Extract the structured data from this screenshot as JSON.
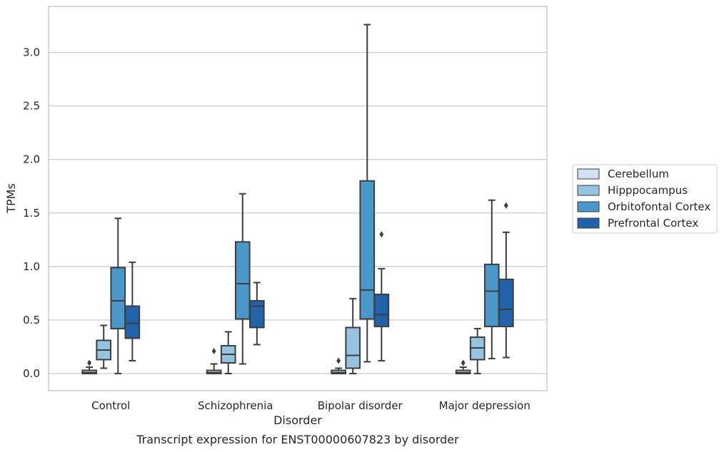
{
  "chart_data": {
    "type": "box",
    "caption": "Transcript expression for ENST00000607823 by disorder",
    "xlabel": "Disorder",
    "ylabel": "TPMs",
    "ylim": [
      -0.16,
      3.43
    ],
    "yticks": [
      "0.0",
      "0.5",
      "1.0",
      "1.5",
      "2.0",
      "2.5",
      "3.0"
    ],
    "ytick_values": [
      0.0,
      0.5,
      1.0,
      1.5,
      2.0,
      2.5,
      3.0
    ],
    "grid": "horizontal",
    "legend_position": "right",
    "categories": [
      "Control",
      "Schizophrenia",
      "Bipolar disorder",
      "Major depression"
    ],
    "series": [
      {
        "name": "Cerebellum",
        "color": "#d0e1f2",
        "boxes": [
          {
            "whislo": 0.0,
            "q1": 0.0,
            "med": 0.01,
            "q3": 0.03,
            "whishi": 0.06,
            "fliers": [
              0.1
            ]
          },
          {
            "whislo": 0.0,
            "q1": 0.0,
            "med": 0.01,
            "q3": 0.03,
            "whishi": 0.09,
            "fliers": [
              0.21
            ]
          },
          {
            "whislo": 0.0,
            "q1": 0.0,
            "med": 0.01,
            "q3": 0.03,
            "whishi": 0.05,
            "fliers": [
              0.12
            ]
          },
          {
            "whislo": 0.0,
            "q1": 0.0,
            "med": 0.01,
            "q3": 0.03,
            "whishi": 0.06,
            "fliers": [
              0.1
            ]
          }
        ]
      },
      {
        "name": "Hipppocampus",
        "color": "#94c4df",
        "boxes": [
          {
            "whislo": 0.05,
            "q1": 0.13,
            "med": 0.22,
            "q3": 0.31,
            "whishi": 0.45,
            "fliers": []
          },
          {
            "whislo": 0.0,
            "q1": 0.1,
            "med": 0.18,
            "q3": 0.26,
            "whishi": 0.39,
            "fliers": []
          },
          {
            "whislo": 0.0,
            "q1": 0.05,
            "med": 0.17,
            "q3": 0.43,
            "whishi": 0.7,
            "fliers": []
          },
          {
            "whislo": 0.0,
            "q1": 0.13,
            "med": 0.24,
            "q3": 0.34,
            "whishi": 0.42,
            "fliers": []
          }
        ]
      },
      {
        "name": "Orbitofontal Cortex",
        "color": "#4a98c9",
        "boxes": [
          {
            "whislo": 0.0,
            "q1": 0.42,
            "med": 0.68,
            "q3": 0.99,
            "whishi": 1.45,
            "fliers": []
          },
          {
            "whislo": 0.09,
            "q1": 0.51,
            "med": 0.84,
            "q3": 1.23,
            "whishi": 1.68,
            "fliers": []
          },
          {
            "whislo": 0.11,
            "q1": 0.51,
            "med": 0.78,
            "q3": 1.8,
            "whishi": 3.26,
            "fliers": []
          },
          {
            "whislo": 0.14,
            "q1": 0.44,
            "med": 0.77,
            "q3": 1.02,
            "whishi": 1.62,
            "fliers": []
          }
        ]
      },
      {
        "name": "Prefrontal Cortex",
        "color": "#2163aa",
        "boxes": [
          {
            "whislo": 0.12,
            "q1": 0.33,
            "med": 0.47,
            "q3": 0.63,
            "whishi": 1.04,
            "fliers": []
          },
          {
            "whislo": 0.27,
            "q1": 0.43,
            "med": 0.63,
            "q3": 0.68,
            "whishi": 0.85,
            "fliers": []
          },
          {
            "whislo": 0.12,
            "q1": 0.44,
            "med": 0.55,
            "q3": 0.74,
            "whishi": 0.98,
            "fliers": [
              1.3
            ]
          },
          {
            "whislo": 0.15,
            "q1": 0.44,
            "med": 0.6,
            "q3": 0.88,
            "whishi": 1.32,
            "fliers": [
              1.57
            ]
          }
        ]
      }
    ]
  }
}
